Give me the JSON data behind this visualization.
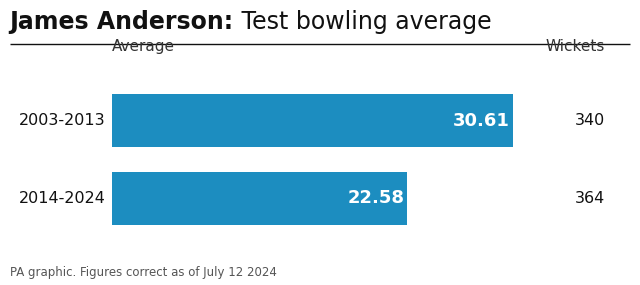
{
  "title_bold": "James Anderson:",
  "title_normal": " Test bowling average",
  "categories": [
    "2003-2013",
    "2014-2024"
  ],
  "averages": [
    30.61,
    22.58
  ],
  "wickets": [
    340,
    364
  ],
  "bar_color": "#1c8dc0",
  "bar_label_color": "#ffffff",
  "col_header_average": "Average",
  "col_header_wickets": "Wickets",
  "footnote": "PA graphic. Figures correct as of July 12 2024",
  "background_color": "#ffffff",
  "max_avg": 33.5,
  "title_fontsize": 17,
  "bar_label_fontsize": 13,
  "category_fontsize": 11.5,
  "footnote_fontsize": 8.5,
  "header_fontsize": 11
}
